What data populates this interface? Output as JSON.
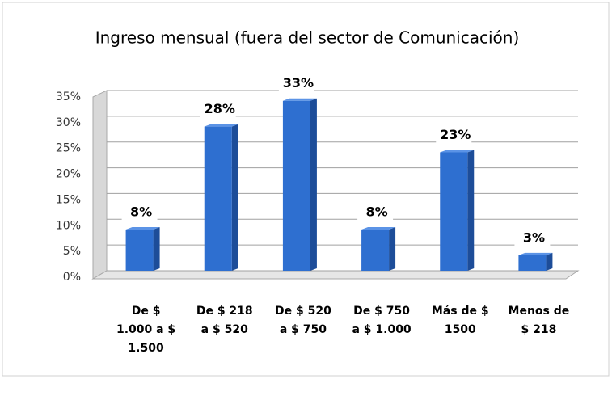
{
  "chart_data": {
    "type": "bar",
    "title": "Ingreso mensual (fuera del sector de Comunicación)",
    "categories": [
      "De $ 1.000 a $ 1.500",
      "De $ 218 a $ 520",
      "De $ 520 a $ 750",
      "De $ 750 a $ 1.000",
      "Más de $ 1500",
      "Menos de $ 218"
    ],
    "values": [
      8,
      28,
      33,
      8,
      23,
      3
    ],
    "value_labels": [
      "8%",
      "28%",
      "33%",
      "8%",
      "23%",
      "3%"
    ],
    "color": "#2e6fd0",
    "ylim": [
      0,
      35
    ],
    "yticks": [
      {
        "value": 0,
        "label": "0%"
      },
      {
        "value": 5,
        "label": "5%"
      },
      {
        "value": 10,
        "label": "10%"
      },
      {
        "value": 15,
        "label": "15%"
      },
      {
        "value": 20,
        "label": "20%"
      },
      {
        "value": 25,
        "label": "25%"
      },
      {
        "value": 30,
        "label": "30%"
      },
      {
        "value": 35,
        "label": "35%"
      }
    ],
    "grid": true
  }
}
